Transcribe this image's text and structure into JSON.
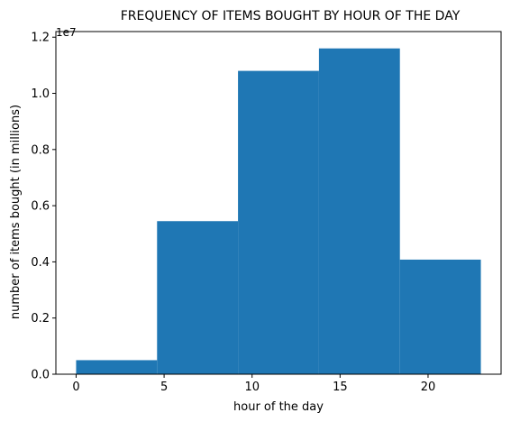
{
  "chart_data": {
    "type": "histogram",
    "title": "FREQUENCY OF ITEMS BOUGHT BY HOUR OF THE DAY",
    "xlabel": "hour of the day",
    "ylabel": "number of items bought (in millions)",
    "y_offset_label": "1e7",
    "bin_edges": [
      0,
      4.6,
      9.2,
      13.8,
      18.4,
      23
    ],
    "values": [
      500000,
      5450000,
      10800000,
      11600000,
      4080000
    ],
    "xlim": [
      -1.15,
      24.15
    ],
    "ylim": [
      0,
      12200000
    ],
    "xticks": [
      0,
      5,
      10,
      15,
      20
    ],
    "xtick_labels": [
      "0",
      "5",
      "10",
      "15",
      "20"
    ],
    "yticks": [
      0,
      2000000,
      4000000,
      6000000,
      8000000,
      10000000,
      12000000
    ],
    "ytick_labels": [
      "0.0",
      "0.2",
      "0.4",
      "0.6",
      "0.8",
      "1.0",
      "1.2"
    ],
    "bar_color": "#1f77b4",
    "grid": false,
    "legend": "none"
  }
}
